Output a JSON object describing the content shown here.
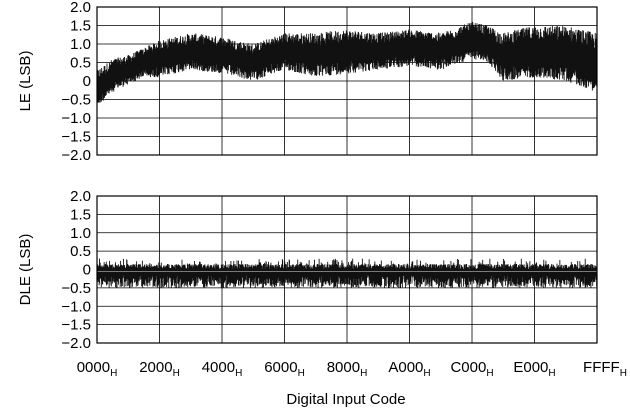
{
  "chart_data": [
    {
      "type": "line",
      "ylabel": "LE (LSB)",
      "ylim": [
        -2.0,
        2.0
      ],
      "yticks": [
        "2.0",
        "1.5",
        "1.0",
        "0.5",
        "0",
        "−0.5",
        "−1.0",
        "−1.5",
        "−2.0"
      ],
      "grid": true,
      "series_color": "#111111",
      "envelope": {
        "x": [
          0,
          2048,
          4096,
          6144,
          8192,
          12288,
          16384,
          20480,
          24576,
          28672,
          32768,
          36864,
          40960,
          45056,
          49152,
          51200,
          53248,
          57344,
          61440,
          65535
        ],
        "upper": [
          0.3,
          0.6,
          0.7,
          0.9,
          1.1,
          1.3,
          1.2,
          1.0,
          1.3,
          1.3,
          1.4,
          1.3,
          1.4,
          1.3,
          1.6,
          1.5,
          1.3,
          1.5,
          1.5,
          1.3
        ],
        "lower": [
          -0.7,
          -0.3,
          -0.1,
          0.1,
          0.1,
          0.3,
          0.2,
          0.0,
          0.3,
          0.1,
          0.2,
          0.3,
          0.4,
          0.3,
          0.6,
          0.5,
          0.0,
          0.1,
          0.0,
          -0.3
        ]
      }
    },
    {
      "type": "line",
      "ylabel": "DLE (LSB)",
      "ylim": [
        -2.0,
        2.0
      ],
      "yticks": [
        "2.0",
        "1.5",
        "1.0",
        "0.5",
        "0",
        "−0.5",
        "−1.0",
        "−1.5",
        "−2.0"
      ],
      "grid": true,
      "series_color": "#111111",
      "envelope": {
        "x": [
          0,
          8192,
          16384,
          24576,
          32768,
          40960,
          49152,
          57344,
          65535
        ],
        "upper": [
          0.3,
          0.3,
          0.3,
          0.3,
          0.3,
          0.3,
          0.3,
          0.3,
          0.3
        ],
        "lower": [
          -0.5,
          -0.5,
          -0.5,
          -0.5,
          -0.5,
          -0.5,
          -0.5,
          -0.5,
          -0.5
        ]
      }
    }
  ],
  "x_axis": {
    "xlim": [
      0,
      65535
    ],
    "title": "Digital Input Code",
    "ticks": [
      {
        "value": 0,
        "label": "0000",
        "sub": "H"
      },
      {
        "value": 8192,
        "label": "2000",
        "sub": "H"
      },
      {
        "value": 16384,
        "label": "4000",
        "sub": "H"
      },
      {
        "value": 24576,
        "label": "6000",
        "sub": "H"
      },
      {
        "value": 32768,
        "label": "8000",
        "sub": "H"
      },
      {
        "value": 40960,
        "label": "A000",
        "sub": "H"
      },
      {
        "value": 49152,
        "label": "C000",
        "sub": "H"
      },
      {
        "value": 57344,
        "label": "E000",
        "sub": "H"
      },
      {
        "value": 65535,
        "label": "FFFF",
        "sub": "H"
      }
    ]
  }
}
